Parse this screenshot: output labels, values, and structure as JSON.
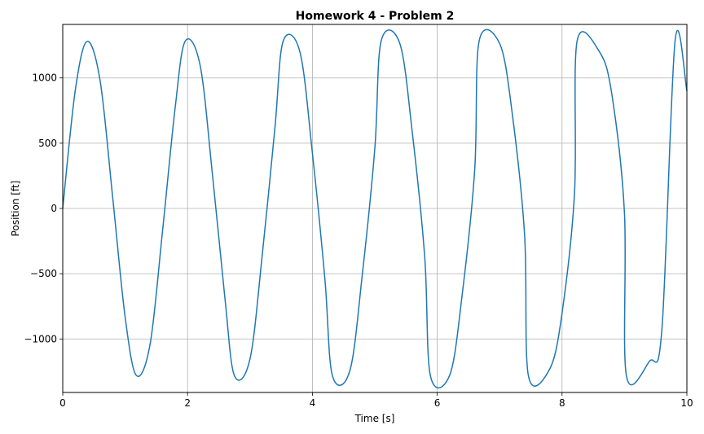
{
  "chart_data": {
    "type": "line",
    "title": "Homework 4 - Problem 2",
    "xlabel": "Time [s]",
    "ylabel": "Position [ft]",
    "xlim": [
      0,
      10
    ],
    "ylim": [
      -1410,
      1410
    ],
    "x_ticks": [
      0,
      2,
      4,
      6,
      8,
      10
    ],
    "x_tick_labels": [
      "0",
      "2",
      "4",
      "6",
      "8",
      "10"
    ],
    "y_ticks": [
      -1000,
      -500,
      0,
      500,
      1000
    ],
    "y_tick_labels": [
      "−1000",
      "−500",
      "0",
      "500",
      "1000"
    ],
    "grid": true,
    "series": [
      {
        "color": "#1f77b4",
        "x": [
          0,
          0.2,
          0.39,
          0.6,
          0.8,
          1.0,
          1.18,
          1.4,
          1.6,
          1.8,
          1.96,
          2.2,
          2.4,
          2.6,
          2.75,
          3.0,
          3.2,
          3.4,
          3.53,
          3.8,
          4.0,
          4.2,
          4.32,
          4.6,
          4.8,
          5.0,
          5.1,
          5.4,
          5.6,
          5.8,
          5.89,
          6.2,
          6.4,
          6.6,
          6.67,
          7.0,
          7.2,
          7.4,
          7.46,
          7.8,
          8.0,
          8.2,
          8.24,
          8.6,
          8.8,
          9.0,
          9.03,
          9.4,
          9.6,
          9.81,
          10.0
        ],
        "y": [
          0,
          902,
          1280,
          975,
          85,
          -834,
          -1280,
          -1039,
          -167,
          767,
          1280,
          1099,
          253,
          -695,
          -1280,
          -1153,
          -340,
          620,
          1280,
          1199,
          424,
          -541,
          -1280,
          -1243,
          -505,
          460,
          1280,
          1265,
          584,
          -375,
          -1280,
          -1277,
          -660,
          293,
          1280,
          1264,
          734,
          -207,
          -1280,
          -1232,
          -802,
          123,
          1280,
          1200,
          867,
          -38,
          -1280,
          -1171,
          -925,
          1280,
          900
        ]
      }
    ]
  }
}
